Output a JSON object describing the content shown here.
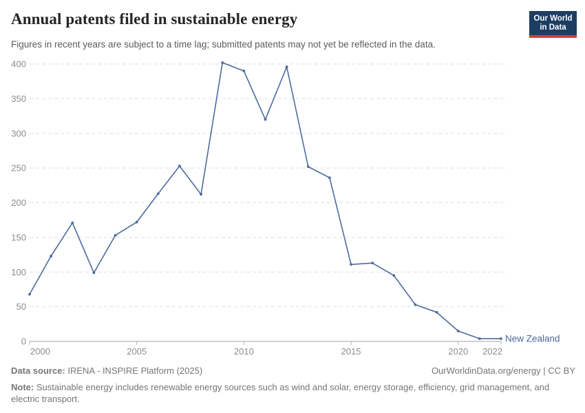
{
  "header": {
    "title": "Annual patents filed in sustainable energy",
    "subtitle": "Figures in recent years are subject to a time lag; submitted patents may not yet be reflected in the data.",
    "logo": {
      "line1": "Our World",
      "line2": "in Data"
    }
  },
  "chart_data": {
    "type": "line",
    "title": "Annual patents filed in sustainable energy",
    "x": [
      2000,
      2001,
      2002,
      2003,
      2004,
      2005,
      2006,
      2007,
      2008,
      2009,
      2010,
      2011,
      2012,
      2013,
      2014,
      2015,
      2016,
      2017,
      2018,
      2019,
      2020,
      2021,
      2022
    ],
    "series": [
      {
        "name": "New Zealand",
        "color": "#4c6a9c",
        "values": [
          68,
          123,
          171,
          99,
          153,
          172,
          213,
          253,
          212,
          402,
          390,
          320,
          396,
          252,
          236,
          111,
          113,
          95,
          53,
          42,
          15,
          4,
          4
        ]
      }
    ],
    "xlabel": "",
    "ylabel": "",
    "xlim": [
      2000,
      2022
    ],
    "ylim": [
      0,
      400
    ],
    "xticks": [
      2000,
      2005,
      2010,
      2015,
      2020,
      2022
    ],
    "yticks": [
      0,
      50,
      100,
      150,
      200,
      250,
      300,
      350,
      400
    ],
    "grid": true,
    "legend_position": "line-end-label"
  },
  "footer": {
    "datasource_label": "Data source:",
    "datasource": "IRENA - INSPIRE Platform (2025)",
    "attribution": "OurWorldinData.org/energy | CC BY",
    "note_label": "Note:",
    "note": "Sustainable energy includes renewable energy sources such as wind and solar, energy storage, efficiency, grid management, and electric transport."
  },
  "colors": {
    "accent": "#4c6a9c",
    "logo_bg": "#1d3d63",
    "logo_red": "#d53d33",
    "gridline": "#dedede",
    "axis": "#a0a0a0",
    "tick_label": "#8c8c8c"
  }
}
